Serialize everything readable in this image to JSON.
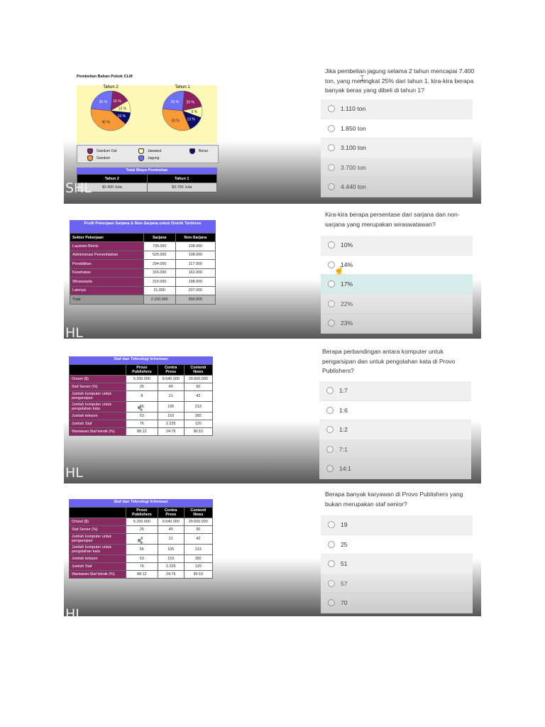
{
  "q1": {
    "chart_title": "Pembelian Bahan Pokok CLM",
    "pies": [
      {
        "label": "Tahun 2",
        "slices": [
          {
            "name": "Gandum Oat",
            "value": 15,
            "label": "15 %",
            "color": "#8c2060"
          },
          {
            "name": "Jawawut",
            "value": 10,
            "label": "10 %",
            "color": "#ffffb0"
          },
          {
            "name": "Beras",
            "value": 10,
            "label": "10 %",
            "color": "#0b0b6b"
          },
          {
            "name": "Gandum",
            "value": 40,
            "label": "40 %",
            "color": "#f89a38"
          },
          {
            "name": "Jagung",
            "value": 25,
            "label": "25 %",
            "color": "#6f6ff8"
          }
        ]
      },
      {
        "label": "Tahun 1",
        "slices": [
          {
            "name": "Gandum Oat",
            "value": 20,
            "label": "20 %",
            "color": "#8c2060"
          },
          {
            "name": "Jawawut",
            "value": 9,
            "label": "9 %",
            "color": "#ffffb0"
          },
          {
            "name": "Beras",
            "value": 13,
            "label": "13 %",
            "color": "#0b0b6b"
          },
          {
            "name": "Gandum",
            "value": 33,
            "label": "33 %",
            "color": "#f89a38"
          },
          {
            "name": "Jagung",
            "value": 25,
            "label": "25 %",
            "color": "#6f6ff8"
          }
        ]
      }
    ],
    "legend": [
      "Gandum Oat",
      "Jawawut",
      "Beras",
      "Gandum",
      "Jagung"
    ],
    "cost_title": "Total Biaya Pembelian",
    "cost_headers": [
      "Tahun 2",
      "Tahun 1"
    ],
    "cost_values": [
      "$2.400 Juta",
      "$3.750 Juta"
    ],
    "watermark": "SHL",
    "question": "Jika pembelian jagung selama 2 tahun mencapai 7.400 ton, yang meningkat 25% dari tahun 1, kira-kira berapa banyak beras yang dibeli di tahun 1?",
    "options": [
      "1.110 ton",
      "1.850 ton",
      "3.100 ton",
      "3.700 ton",
      "4.440 ton"
    ]
  },
  "q2": {
    "table_title": "Profil Pekerjaan Sarjana & Non-Sarjana untuk Distrik Tartleton",
    "headers": [
      "Sektor Pekerjaan",
      "Sarjana",
      "Non-Sarjana"
    ],
    "rows": [
      [
        "Layanan Bisnis",
        "735.000",
        "108.000"
      ],
      [
        "Administrasi Pemerintahan",
        "525.000",
        "108.000"
      ],
      [
        "Pendidikan",
        "294.000",
        "117.000"
      ],
      [
        "Kesehatan",
        "315.000",
        "162.000"
      ],
      [
        "Wiraswasta",
        "210.000",
        "198.000"
      ],
      [
        "Lainnya",
        "21.000",
        "207.000"
      ]
    ],
    "total": [
      "Total",
      "2.100.000",
      "900.000"
    ],
    "watermark": "HL",
    "question": "Kira-kira berapa persentase dari sarjana dan non-sarjana yang merupakan wiraswatawan?",
    "options": [
      "10%",
      "14%",
      "17%",
      "22%",
      "23%"
    ]
  },
  "q3": {
    "table_title": "Staf dan Teknologi Informasi",
    "headers": [
      "",
      "Provo Publishers",
      "Contra Press",
      "Contenti News"
    ],
    "rows": [
      [
        "Omzet ($)",
        "5.200.000",
        "9.540.000",
        "29.600.000"
      ],
      [
        "Staf Senior (%)",
        "25",
        "40",
        "50"
      ],
      [
        "Jumlah komputer untuk pengarsipan",
        "8",
        "21",
        "42"
      ],
      [
        "Jumlah komputer untuk pengolahan kata",
        "56",
        "105",
        "213"
      ],
      [
        "Jumlah telepon",
        "53",
        "153",
        "392"
      ],
      [
        "Jumlah Staf",
        "76",
        "2.225",
        "120"
      ],
      [
        "Wartawan:Staf teknik (%)",
        "88:12",
        "24:76",
        "90:10"
      ]
    ],
    "watermark": "HL",
    "question": "Berapa perbandingan antara komputer untuk pengarsipan dan untuk pengolahan kata di Provo Publishers?",
    "options": [
      "1:7",
      "1:6",
      "1:2",
      "7:1",
      "14:1"
    ]
  },
  "q4": {
    "table_title": "Staf dan Teknologi Informasi",
    "headers": [
      "",
      "Provo Publishers",
      "Contra Press",
      "Contenti News"
    ],
    "rows": [
      [
        "Omzet ($)",
        "5.200.000",
        "9.540.000",
        "29.600.000"
      ],
      [
        "Staf Senior (%)",
        "25",
        "40",
        "50"
      ],
      [
        "Jumlah komputer untuk pengarsipan",
        "8",
        "21",
        "42"
      ],
      [
        "Jumlah komputer untuk pengolahan kata",
        "56",
        "105",
        "213"
      ],
      [
        "Jumlah telepon",
        "53",
        "153",
        "392"
      ],
      [
        "Jumlah Staf",
        "76",
        "2.225",
        "120"
      ],
      [
        "Wartawan:Staf teknik (%)",
        "88:12",
        "24:76",
        "90:10"
      ]
    ],
    "watermark": "HL",
    "question": "Berapa banyak karyawan di Provo Publishers yang bukan merupakan staf senior?",
    "options": [
      "19",
      "25",
      "51",
      "57",
      "70"
    ]
  }
}
